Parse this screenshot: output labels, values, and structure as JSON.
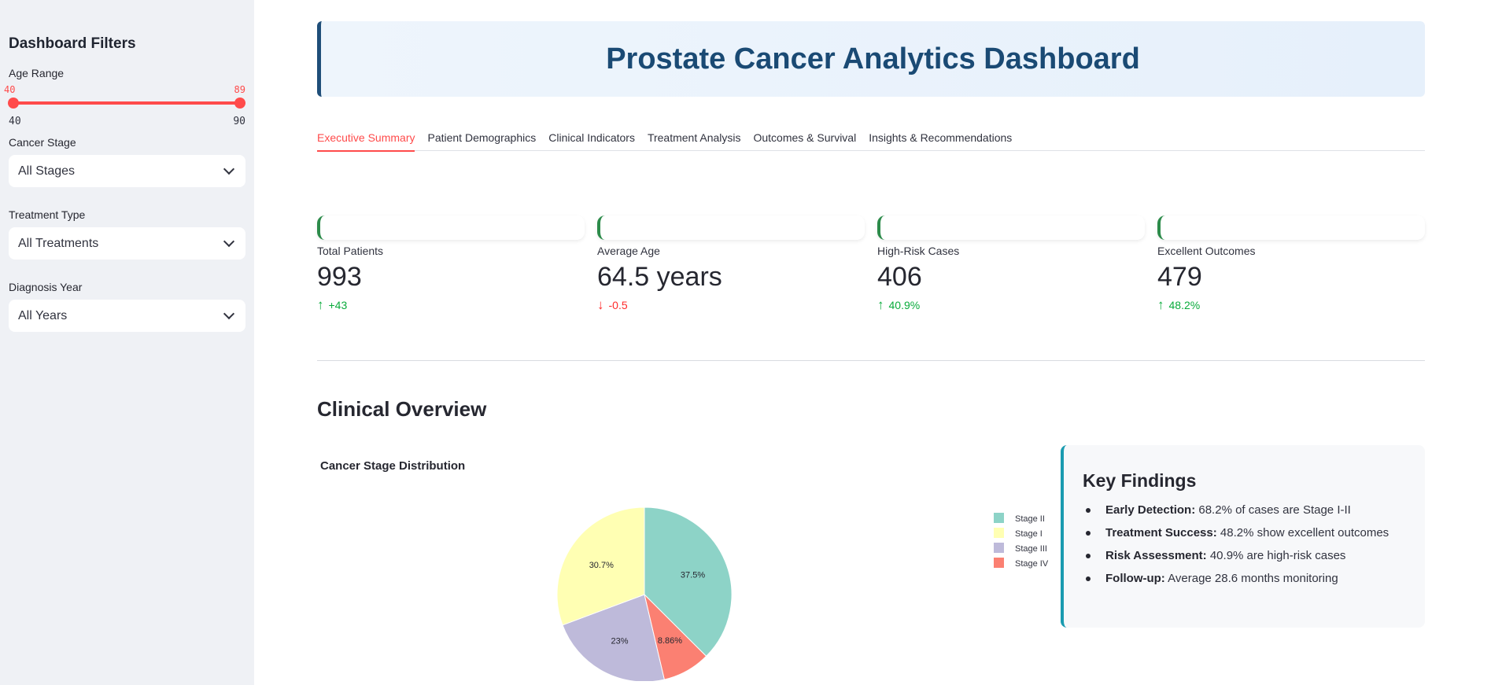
{
  "sidebar": {
    "title": "Dashboard Filters",
    "age_range": {
      "label": "Age Range",
      "selected_min": "40",
      "selected_max": "89",
      "min": "40",
      "max": "90"
    },
    "cancer_stage": {
      "label": "Cancer Stage",
      "value": "All Stages"
    },
    "treatment_type": {
      "label": "Treatment Type",
      "value": "All Treatments"
    },
    "diagnosis_year": {
      "label": "Diagnosis Year",
      "value": "All Years"
    }
  },
  "header": {
    "title": "Prostate Cancer Analytics Dashboard"
  },
  "tabs": [
    {
      "label": "Executive Summary",
      "active": true
    },
    {
      "label": "Patient Demographics"
    },
    {
      "label": "Clinical Indicators"
    },
    {
      "label": "Treatment Analysis"
    },
    {
      "label": "Outcomes & Survival"
    },
    {
      "label": "Insights & Recommendations"
    }
  ],
  "metrics": [
    {
      "label": "Total Patients",
      "value": "993",
      "delta": "+43",
      "direction": "up"
    },
    {
      "label": "Average Age",
      "value": "64.5 years",
      "delta": "-0.5",
      "direction": "down"
    },
    {
      "label": "High-Risk Cases",
      "value": "406",
      "delta": "40.9%",
      "direction": "up"
    },
    {
      "label": "Excellent Outcomes",
      "value": "479",
      "delta": "48.2%",
      "direction": "up"
    }
  ],
  "section": {
    "title": "Clinical Overview"
  },
  "chart_data": {
    "type": "pie",
    "title": "Cancer Stage Distribution",
    "categories": [
      "Stage II",
      "Stage I",
      "Stage III",
      "Stage IV"
    ],
    "values": [
      37.5,
      30.7,
      23,
      8.86
    ],
    "labels": [
      "37.5%",
      "30.7%",
      "23%",
      "8.86%"
    ],
    "colors": [
      "#8dd3c7",
      "#ffffb3",
      "#bebada",
      "#fb8072"
    ],
    "draw_order": [
      "Stage II",
      "Stage IV",
      "Stage III",
      "Stage I"
    ],
    "legend": "right"
  },
  "findings": {
    "title": "Key Findings",
    "items": [
      {
        "bold": "Early Detection:",
        "text": " 68.2% of cases are Stage I-II"
      },
      {
        "bold": "Treatment Success:",
        "text": " 48.2% show excellent outcomes"
      },
      {
        "bold": "Risk Assessment:",
        "text": " 40.9% are high-risk cases"
      },
      {
        "bold": "Follow-up:",
        "text": " Average 28.6 months monitoring"
      }
    ]
  }
}
